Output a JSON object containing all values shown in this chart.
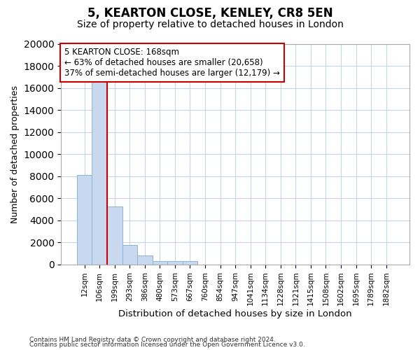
{
  "title1": "5, KEARTON CLOSE, KENLEY, CR8 5EN",
  "title2": "Size of property relative to detached houses in London",
  "xlabel": "Distribution of detached houses by size in London",
  "ylabel": "Number of detached properties",
  "categories": [
    "12sqm",
    "106sqm",
    "199sqm",
    "293sqm",
    "386sqm",
    "480sqm",
    "573sqm",
    "667sqm",
    "760sqm",
    "854sqm",
    "947sqm",
    "1041sqm",
    "1134sqm",
    "1228sqm",
    "1321sqm",
    "1415sqm",
    "1508sqm",
    "1602sqm",
    "1695sqm",
    "1789sqm",
    "1882sqm"
  ],
  "values": [
    8100,
    16600,
    5300,
    1800,
    800,
    300,
    300,
    300,
    0,
    0,
    0,
    0,
    0,
    0,
    0,
    0,
    0,
    0,
    0,
    0,
    0
  ],
  "bar_color": "#c8d8ee",
  "bar_edge_color": "#8ab4d8",
  "vline_x": 1.5,
  "vline_color": "#cc0000",
  "annotation_text": "5 KEARTON CLOSE: 168sqm\n← 63% of detached houses are smaller (20,658)\n37% of semi-detached houses are larger (12,179) →",
  "annotation_box_color": "#ffffff",
  "annotation_box_edge": "#cc0000",
  "ylim": [
    0,
    20000
  ],
  "yticks": [
    0,
    2000,
    4000,
    6000,
    8000,
    10000,
    12000,
    14000,
    16000,
    18000,
    20000
  ],
  "footer1": "Contains HM Land Registry data © Crown copyright and database right 2024.",
  "footer2": "Contains public sector information licensed under the Open Government Licence v3.0.",
  "bg_color": "#ffffff",
  "grid_color": "#c8d4e8",
  "title1_fontsize": 12,
  "title2_fontsize": 10
}
